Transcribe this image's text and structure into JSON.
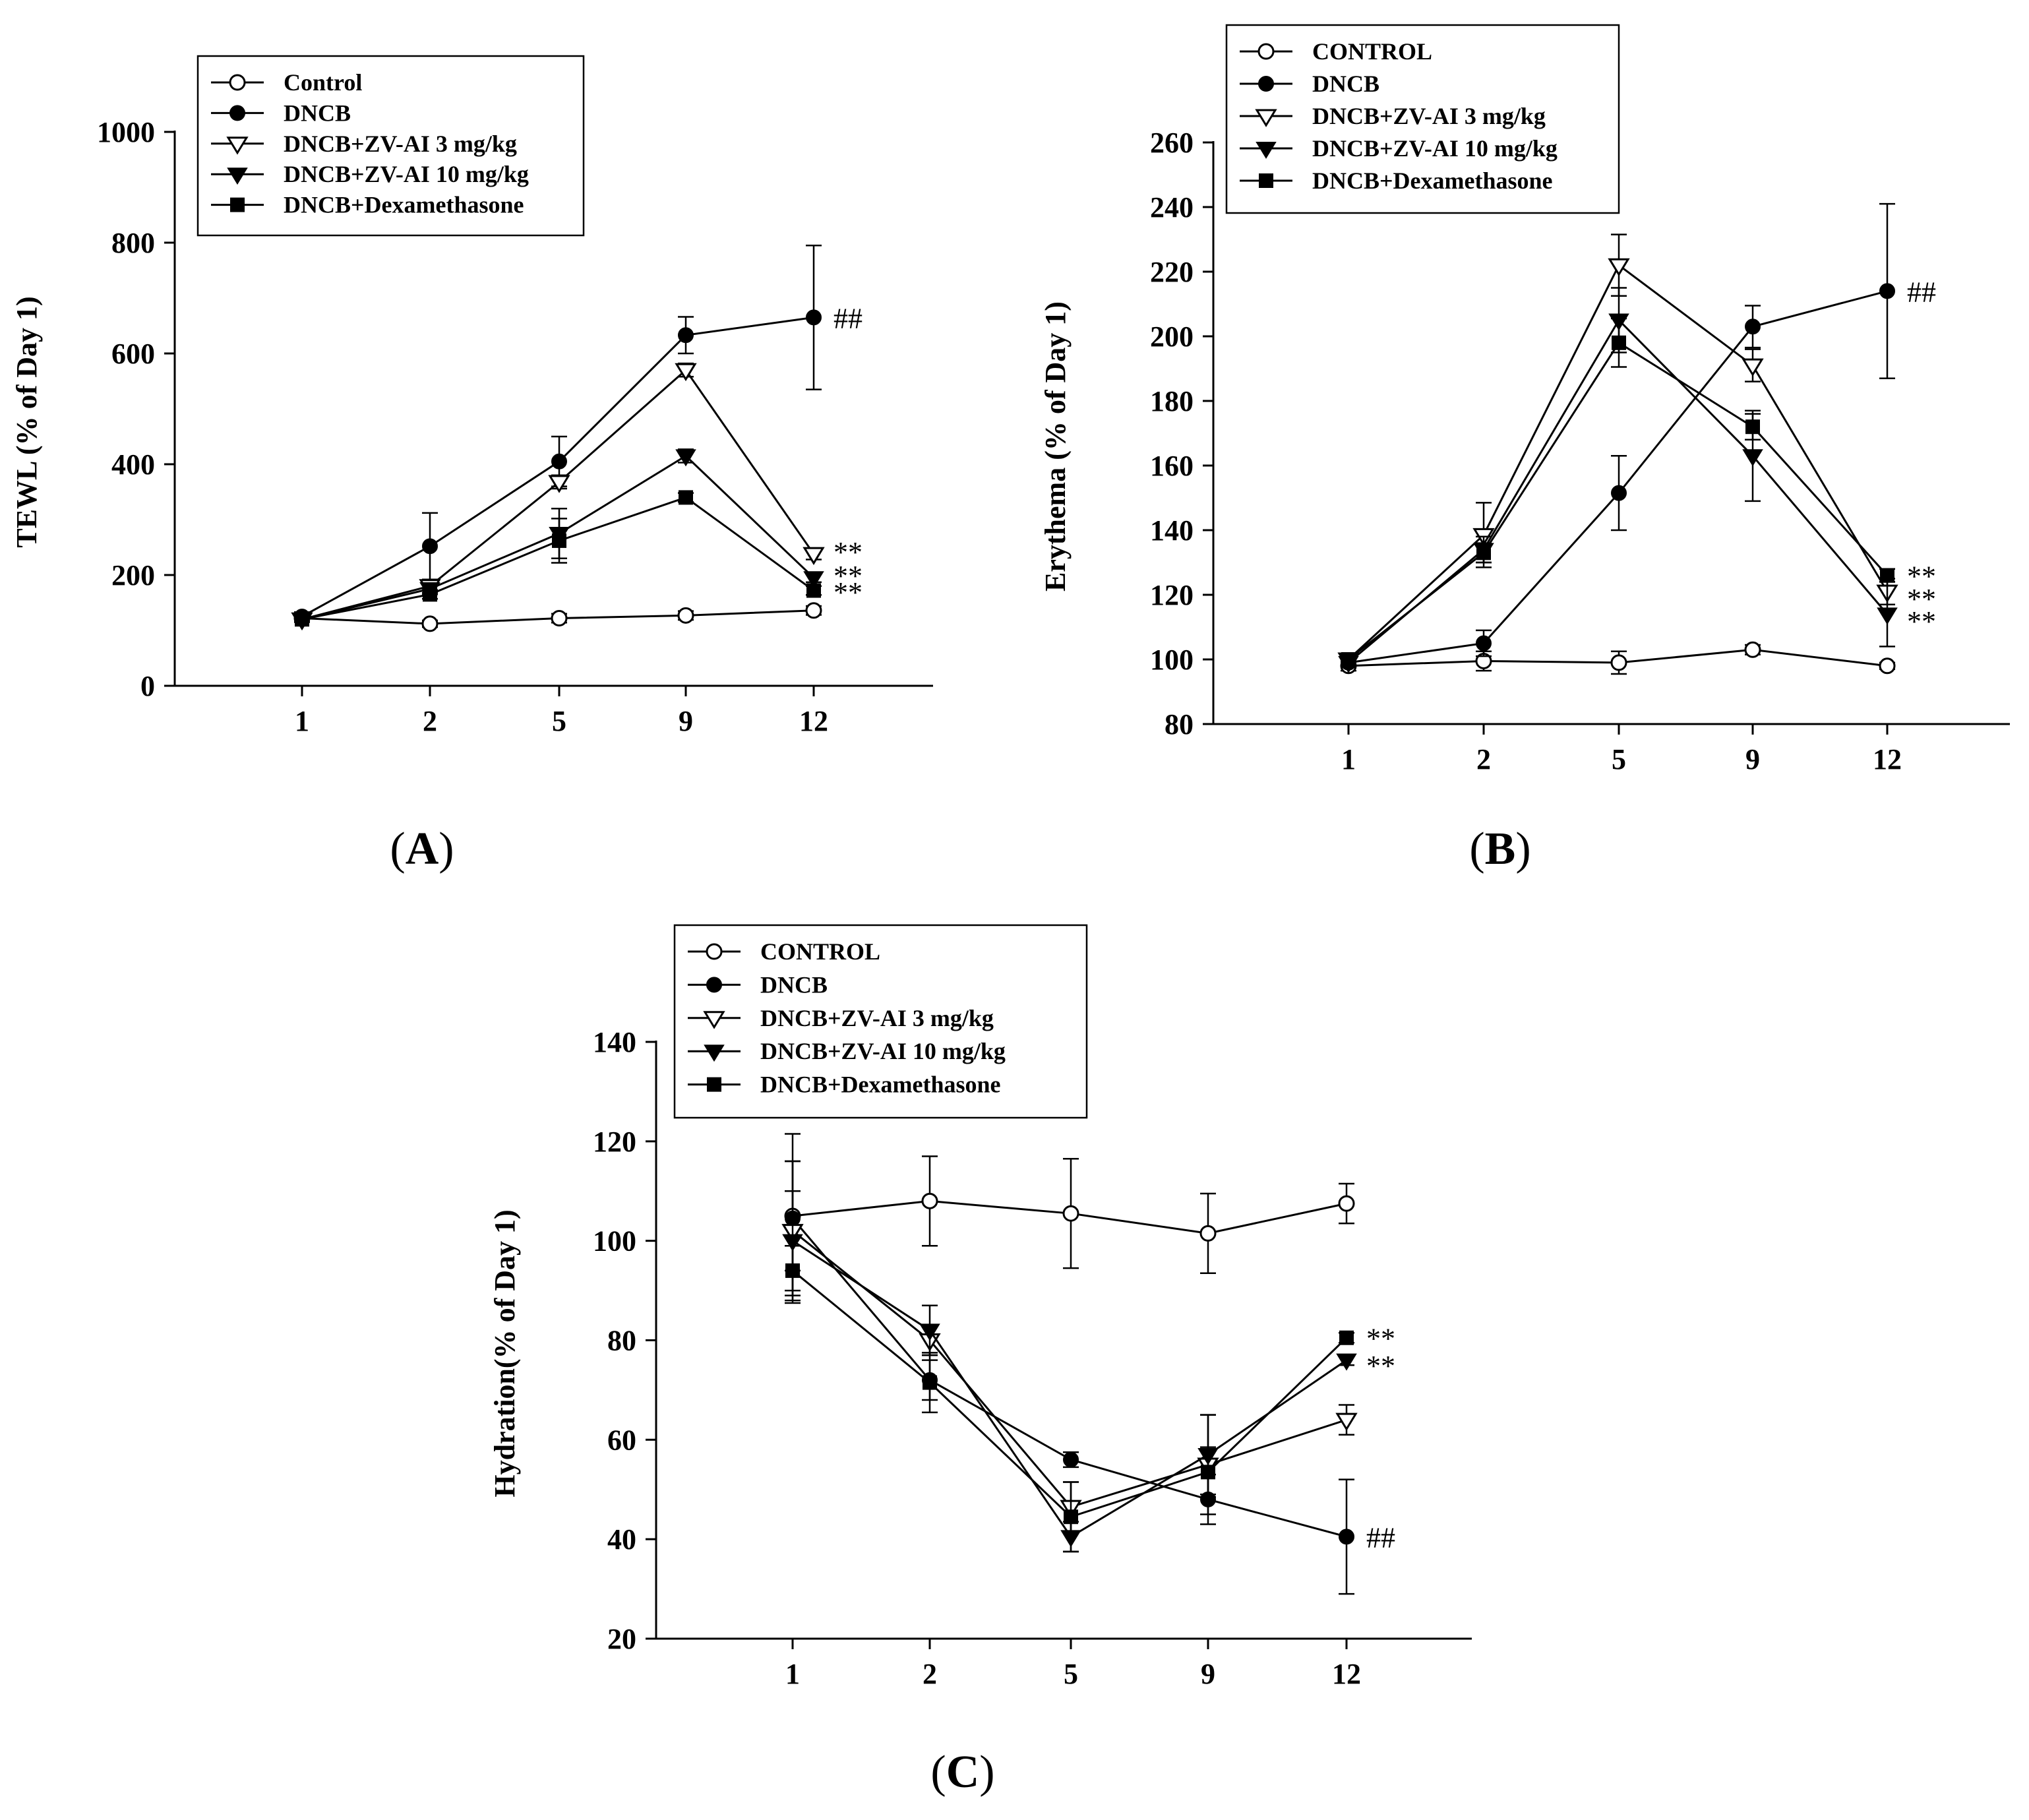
{
  "chart_data": [
    {
      "type": "line",
      "panel_label": "A",
      "title": "",
      "xlabel": "",
      "ylabel": "TEWL (% of Day 1)",
      "categories": [
        "1",
        "2",
        "5",
        "9",
        "12"
      ],
      "ylim": [
        0,
        1000
      ],
      "yticks": [
        0,
        200,
        400,
        600,
        800,
        1000
      ],
      "legend": "top-left",
      "series": [
        {
          "name": "Control",
          "marker": "open-circle",
          "values": [
            122,
            112,
            122,
            127,
            136
          ],
          "errors": [
            6,
            6,
            8,
            8,
            8
          ]
        },
        {
          "name": "DNCB",
          "marker": "filled-circle",
          "values": [
            125,
            252,
            405,
            633,
            665
          ],
          "errors": [
            8,
            60,
            45,
            33,
            130
          ]
        },
        {
          "name": "DNCB+ZV-AI 3 mg/kg",
          "marker": "open-triangle-down",
          "values": [
            120,
            180,
            368,
            570,
            238
          ],
          "errors": [
            5,
            12,
            12,
            12,
            10
          ]
        },
        {
          "name": "DNCB+ZV-AI 10 mg/kg",
          "marker": "filled-triangle-down",
          "values": [
            120,
            175,
            275,
            415,
            195
          ],
          "errors": [
            5,
            10,
            45,
            12,
            8
          ]
        },
        {
          "name": "DNCB+Dexamethasone",
          "marker": "filled-square",
          "values": [
            120,
            165,
            262,
            340,
            172
          ],
          "errors": [
            5,
            8,
            40,
            8,
            8
          ]
        }
      ],
      "annotations": [
        {
          "text": "##",
          "category": "12",
          "value": 665
        },
        {
          "text": "**",
          "category": "12",
          "value": 243
        },
        {
          "text": "**",
          "category": "12",
          "value": 200
        },
        {
          "text": "**",
          "category": "12",
          "value": 170
        }
      ]
    },
    {
      "type": "line",
      "panel_label": "B",
      "title": "",
      "xlabel": "",
      "ylabel": "Erythema (% of  Day 1)",
      "categories": [
        "1",
        "2",
        "5",
        "9",
        "12"
      ],
      "ylim": [
        80,
        260
      ],
      "yticks": [
        80,
        100,
        120,
        140,
        160,
        180,
        200,
        220,
        240,
        260
      ],
      "legend": "top-left",
      "series": [
        {
          "name": "CONTROL",
          "marker": "open-circle",
          "values": [
            98,
            99.5,
            99,
            103,
            98
          ],
          "errors": [
            1.5,
            3,
            3.5,
            1.5,
            1
          ]
        },
        {
          "name": "DNCB",
          "marker": "filled-circle",
          "values": [
            99,
            105,
            151.5,
            203,
            214
          ],
          "errors": [
            1.5,
            4,
            11.5,
            6.5,
            27
          ]
        },
        {
          "name": "DNCB+ZV-AI 3 mg/kg",
          "marker": "open-triangle-down",
          "values": [
            100,
            138.5,
            222,
            191,
            121
          ],
          "errors": [
            1.5,
            10,
            9.5,
            5,
            4
          ]
        },
        {
          "name": "DNCB+ZV-AI 10 mg/kg",
          "marker": "filled-triangle-down",
          "values": [
            99,
            134,
            205,
            163,
            114
          ],
          "errors": [
            1.5,
            4,
            10,
            14,
            10
          ]
        },
        {
          "name": "DNCB+Dexamethasone",
          "marker": "filled-square",
          "values": [
            100,
            133,
            198,
            172,
            126
          ],
          "errors": [
            1.5,
            3,
            7.5,
            4,
            2
          ]
        }
      ],
      "annotations": [
        {
          "text": "##",
          "category": "12",
          "value": 214
        },
        {
          "text": "**",
          "category": "12",
          "value": 126
        },
        {
          "text": "**",
          "category": "12",
          "value": 119
        },
        {
          "text": "**",
          "category": "12",
          "value": 112
        }
      ]
    },
    {
      "type": "line",
      "panel_label": "C",
      "title": "",
      "xlabel": "",
      "ylabel": "Hydration(% of  Day 1)",
      "categories": [
        "1",
        "2",
        "5",
        "9",
        "12"
      ],
      "ylim": [
        20,
        140
      ],
      "yticks": [
        20,
        40,
        60,
        80,
        100,
        120,
        140
      ],
      "legend": "top-left",
      "series": [
        {
          "name": "CONTROL",
          "marker": "open-circle",
          "values": [
            105,
            108,
            105.5,
            101.5,
            107.5
          ],
          "errors": [
            11,
            9,
            11,
            8,
            4
          ]
        },
        {
          "name": "DNCB",
          "marker": "filled-circle",
          "values": [
            104.5,
            72,
            56,
            48,
            40.5
          ],
          "errors": [
            17,
            4,
            1.5,
            5,
            11.5
          ]
        },
        {
          "name": "DNCB+ZV-AI 3 mg/kg",
          "marker": "open-triangle-down",
          "values": [
            102,
            80,
            46.5,
            55,
            64
          ],
          "errors": [
            14,
            3,
            5,
            10,
            3
          ]
        },
        {
          "name": "DNCB+ZV-AI 10 mg/kg",
          "marker": "filled-triangle-down",
          "values": [
            100,
            82,
            40.5,
            57,
            76
          ],
          "errors": [
            10,
            5,
            3,
            8,
            1
          ]
        },
        {
          "name": "DNCB+Dexamethasone",
          "marker": "filled-square",
          "values": [
            94,
            71.5,
            44.5,
            53.5,
            80.5
          ],
          "errors": [
            5,
            6,
            7,
            5,
            1
          ]
        }
      ],
      "annotations": [
        {
          "text": "##",
          "category": "12",
          "value": 40.5
        },
        {
          "text": "**",
          "category": "12",
          "value": 80.5
        },
        {
          "text": "**",
          "category": "12",
          "value": 75
        }
      ]
    }
  ]
}
